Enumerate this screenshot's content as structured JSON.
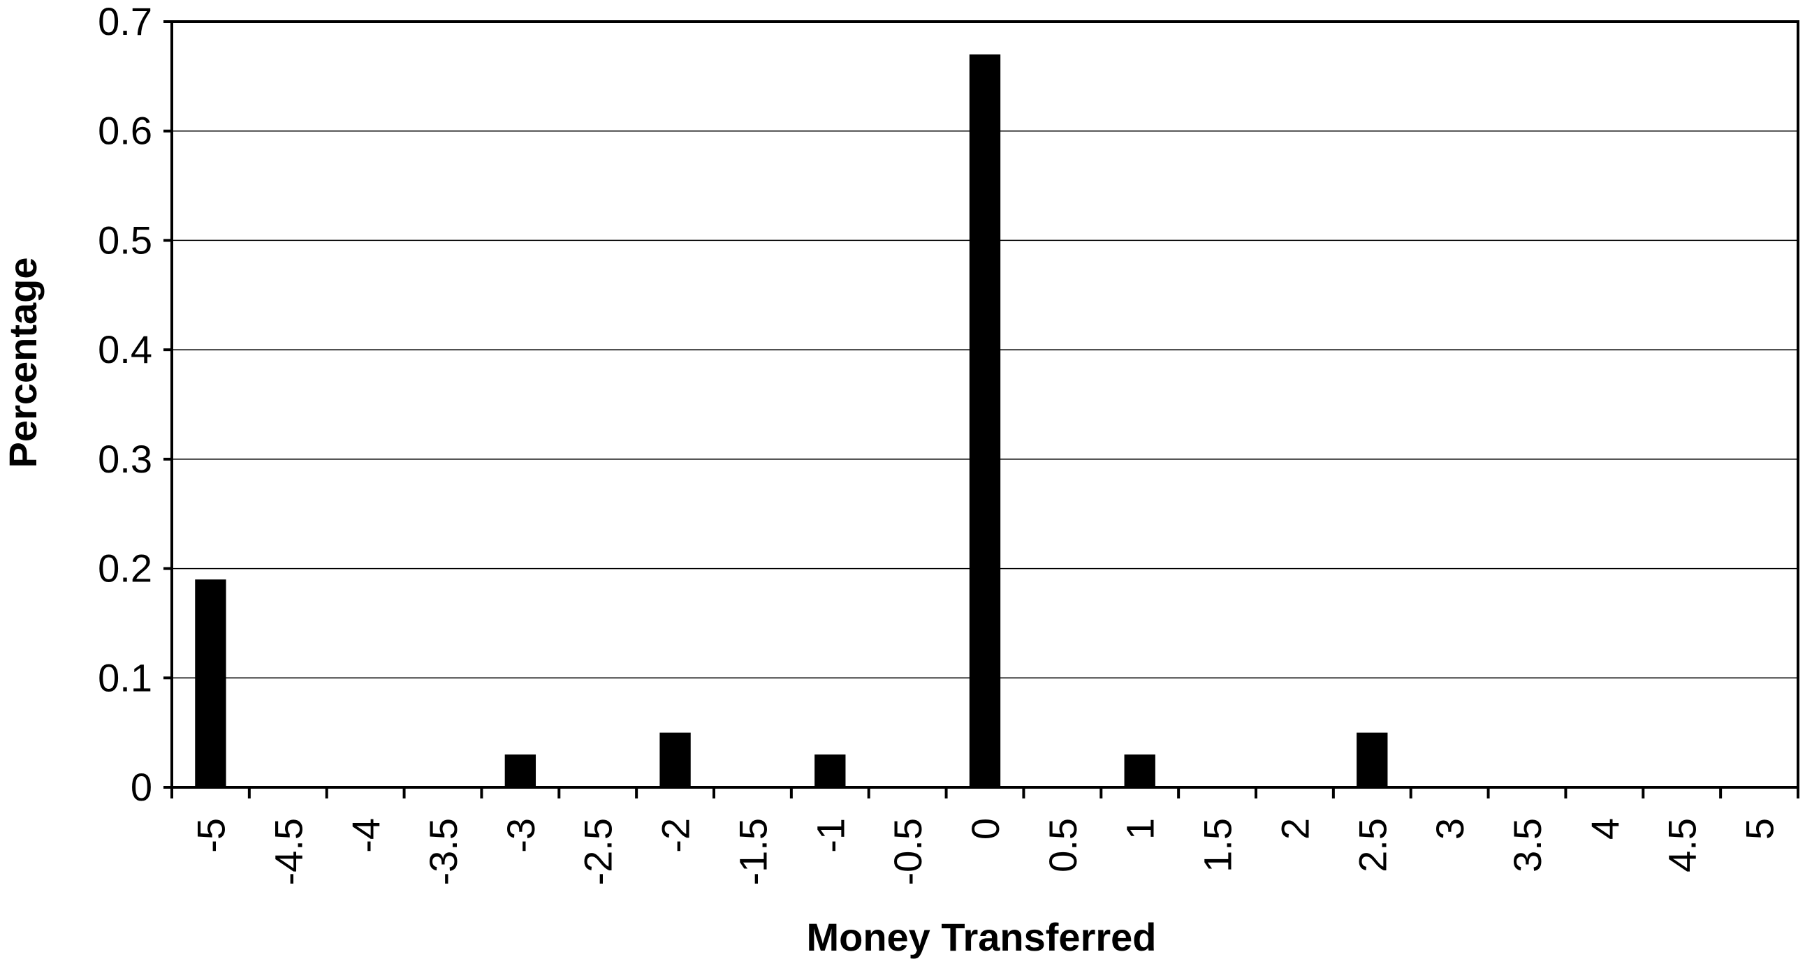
{
  "chart_data": {
    "type": "bar",
    "title": "",
    "xlabel": "Money Transferred",
    "ylabel": "Percentage",
    "categories": [
      "-5",
      "-4.5",
      "-4",
      "-3.5",
      "-3",
      "-2.5",
      "-2",
      "-1.5",
      "-1",
      "-0.5",
      "0",
      "0.5",
      "1",
      "1.5",
      "2",
      "2.5",
      "3",
      "3.5",
      "4",
      "4.5",
      "5"
    ],
    "values": [
      0.19,
      0,
      0,
      0,
      0.03,
      0,
      0.05,
      0,
      0.03,
      0,
      0.67,
      0,
      0.03,
      0,
      0,
      0.05,
      0,
      0,
      0,
      0,
      0
    ],
    "ylim": [
      0,
      0.7
    ],
    "yticks": [
      "0",
      "0.1",
      "0.2",
      "0.3",
      "0.4",
      "0.5",
      "0.6",
      "0.7"
    ],
    "grid": true,
    "bar_color": "#000000"
  }
}
